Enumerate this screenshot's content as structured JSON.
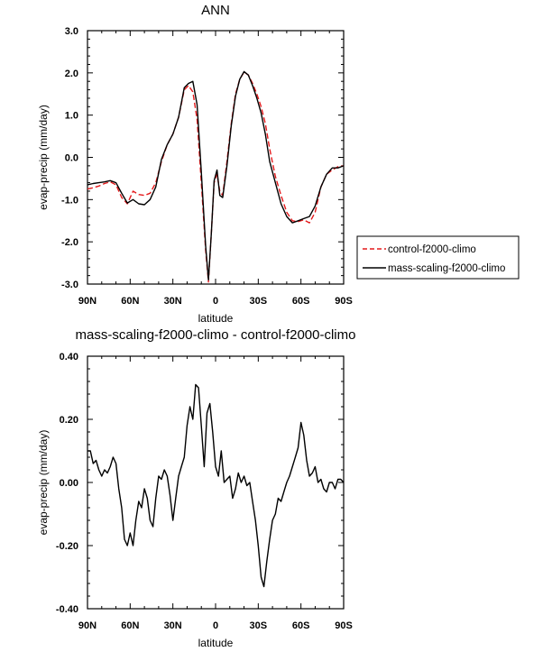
{
  "chart_data": [
    {
      "type": "line",
      "title": "ANN",
      "xlabel": "latitude",
      "ylabel": "evap-precip (mm/day)",
      "xlim": [
        90,
        -90
      ],
      "ylim": [
        -3.0,
        3.0
      ],
      "x_ticks": [
        90,
        60,
        30,
        0,
        -30,
        -60,
        -90
      ],
      "x_tick_labels": [
        "90N",
        "60N",
        "30N",
        "0",
        "30S",
        "60S",
        "90S"
      ],
      "y_ticks": [
        -3.0,
        -2.0,
        -1.0,
        0.0,
        1.0,
        2.0,
        3.0
      ],
      "y_tick_labels": [
        "-3.0",
        "-2.0",
        "-1.0",
        "0.0",
        "1.0",
        "2.0",
        "3.0"
      ],
      "grid": false,
      "legend": "outside-right",
      "series": [
        {
          "name": "control-f2000-climo",
          "color": "#e41a1c",
          "dash": true,
          "x": [
            90,
            86,
            82,
            78,
            74,
            70,
            66,
            62,
            58,
            54,
            50,
            46,
            42,
            38,
            34,
            30,
            26,
            22,
            19,
            16,
            13,
            10,
            7,
            5,
            3,
            1,
            -1,
            -3,
            -5,
            -8,
            -11,
            -14,
            -17,
            -20,
            -23,
            -26,
            -29,
            -32,
            -35,
            -38,
            -42,
            -46,
            -50,
            -54,
            -58,
            -62,
            -66,
            -70,
            -74,
            -78,
            -82,
            -86,
            -90
          ],
          "y": [
            -0.75,
            -0.72,
            -0.68,
            -0.62,
            -0.58,
            -0.65,
            -0.95,
            -1.1,
            -0.8,
            -0.88,
            -0.9,
            -0.85,
            -0.6,
            -0.1,
            0.3,
            0.55,
            0.95,
            1.6,
            1.7,
            1.55,
            0.9,
            -0.6,
            -2.2,
            -2.95,
            -1.8,
            -0.6,
            -0.4,
            -0.8,
            -0.9,
            -0.1,
            0.8,
            1.5,
            1.85,
            2.02,
            1.95,
            1.75,
            1.5,
            1.2,
            0.8,
            0.2,
            -0.45,
            -0.9,
            -1.3,
            -1.5,
            -1.52,
            -1.48,
            -1.55,
            -1.3,
            -0.7,
            -0.4,
            -0.3,
            -0.22,
            -0.2
          ]
        },
        {
          "name": "mass-scaling-f2000-climo",
          "color": "#000000",
          "dash": false,
          "x": [
            90,
            86,
            82,
            78,
            74,
            70,
            66,
            62,
            58,
            54,
            50,
            46,
            42,
            38,
            34,
            30,
            26,
            22,
            19,
            16,
            13,
            10,
            7,
            5,
            3,
            1,
            -1,
            -3,
            -5,
            -8,
            -11,
            -14,
            -17,
            -20,
            -23,
            -26,
            -29,
            -32,
            -35,
            -38,
            -42,
            -46,
            -50,
            -54,
            -58,
            -62,
            -66,
            -70,
            -74,
            -78,
            -82,
            -86,
            -90
          ],
          "y": [
            -0.65,
            -0.62,
            -0.6,
            -0.58,
            -0.55,
            -0.6,
            -0.85,
            -1.08,
            -1.0,
            -1.1,
            -1.12,
            -1.0,
            -0.7,
            -0.05,
            0.3,
            0.55,
            0.95,
            1.65,
            1.75,
            1.8,
            1.25,
            -0.35,
            -2.1,
            -2.9,
            -1.8,
            -0.55,
            -0.3,
            -0.9,
            -0.95,
            -0.2,
            0.75,
            1.45,
            1.85,
            2.03,
            1.95,
            1.7,
            1.4,
            1.05,
            0.55,
            -0.1,
            -0.6,
            -1.1,
            -1.4,
            -1.55,
            -1.5,
            -1.45,
            -1.4,
            -1.15,
            -0.7,
            -0.4,
            -0.25,
            -0.25,
            -0.2
          ]
        }
      ]
    },
    {
      "type": "line",
      "title": "mass-scaling-f2000-climo - control-f2000-climo",
      "xlabel": "latitude",
      "ylabel": "evap-precip (mm/day)",
      "xlim": [
        90,
        -90
      ],
      "ylim": [
        -0.4,
        0.4
      ],
      "x_ticks": [
        90,
        60,
        30,
        0,
        -30,
        -60,
        -90
      ],
      "x_tick_labels": [
        "90N",
        "60N",
        "30N",
        "0",
        "30S",
        "60S",
        "90S"
      ],
      "y_ticks": [
        -0.4,
        -0.2,
        0.0,
        0.2,
        0.4
      ],
      "y_tick_labels": [
        "-0.40",
        "-0.20",
        "0.00",
        "0.20",
        "0.40"
      ],
      "grid": false,
      "series": [
        {
          "color": "#000000",
          "dash": false,
          "x": [
            90,
            88,
            86,
            84,
            82,
            80,
            78,
            76,
            74,
            72,
            70,
            68,
            66,
            64,
            62,
            60,
            58,
            56,
            54,
            52,
            50,
            48,
            46,
            44,
            42,
            40,
            38,
            36,
            34,
            32,
            30,
            28,
            26,
            24,
            22,
            20,
            18,
            16,
            14,
            12,
            10,
            8,
            6,
            4,
            2,
            0,
            -2,
            -4,
            -6,
            -8,
            -10,
            -12,
            -14,
            -16,
            -18,
            -20,
            -22,
            -24,
            -26,
            -28,
            -30,
            -32,
            -34,
            -36,
            -38,
            -40,
            -42,
            -44,
            -46,
            -48,
            -50,
            -52,
            -54,
            -56,
            -58,
            -60,
            -62,
            -64,
            -66,
            -68,
            -70,
            -72,
            -74,
            -76,
            -78,
            -80,
            -82,
            -84,
            -86,
            -88,
            -90
          ],
          "y": [
            0.1,
            0.1,
            0.06,
            0.07,
            0.04,
            0.02,
            0.04,
            0.03,
            0.05,
            0.08,
            0.06,
            -0.02,
            -0.08,
            -0.18,
            -0.2,
            -0.16,
            -0.2,
            -0.12,
            -0.06,
            -0.08,
            -0.02,
            -0.05,
            -0.12,
            -0.14,
            -0.05,
            0.02,
            0.01,
            0.04,
            0.02,
            -0.04,
            -0.12,
            -0.05,
            0.02,
            0.05,
            0.08,
            0.18,
            0.24,
            0.2,
            0.31,
            0.3,
            0.18,
            0.05,
            0.22,
            0.25,
            0.16,
            0.05,
            0.02,
            0.1,
            0.0,
            0.01,
            0.02,
            -0.05,
            -0.02,
            0.03,
            0.0,
            0.02,
            -0.01,
            0.0,
            -0.06,
            -0.12,
            -0.2,
            -0.3,
            -0.33,
            -0.25,
            -0.18,
            -0.12,
            -0.1,
            -0.05,
            -0.06,
            -0.03,
            0.0,
            0.02,
            0.05,
            0.08,
            0.11,
            0.19,
            0.15,
            0.07,
            0.02,
            0.03,
            0.05,
            0.0,
            0.01,
            -0.02,
            -0.03,
            0.0,
            0.0,
            -0.02,
            0.01,
            0.01,
            0.0
          ]
        }
      ]
    }
  ]
}
